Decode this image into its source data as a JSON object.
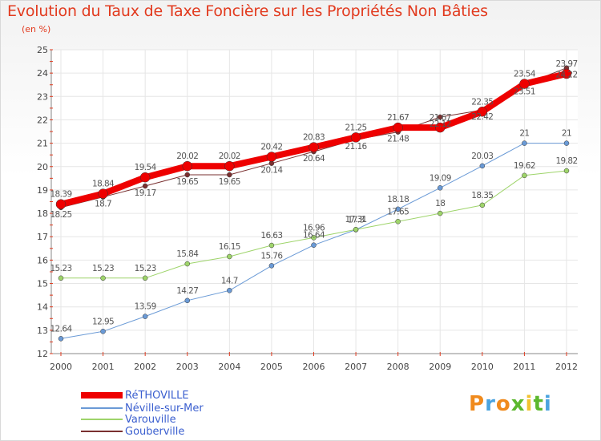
{
  "header": {
    "title": "Evolution du Taux de Taxe Foncière sur les Propriétés Non Bâties",
    "subtitle": "(en %)"
  },
  "logo": {
    "letters": [
      "P",
      "r",
      "o",
      "x",
      "i",
      "t",
      "i"
    ],
    "colors": [
      "#f08a1c",
      "#4aa3df",
      "#f08a1c",
      "#5cb82e",
      "#f2c230",
      "#5cb82e",
      "#4aa3df"
    ]
  },
  "chart_data": {
    "type": "line",
    "title": "Evolution du Taux de Taxe Foncière sur les Propriétés Non Bâties",
    "ylabel": "(en %)",
    "xlabel": "",
    "x": [
      "2000",
      "2001",
      "2002",
      "2003",
      "2004",
      "2005",
      "2006",
      "2007",
      "2008",
      "2009",
      "2010",
      "2011",
      "2012"
    ],
    "ylim": [
      12,
      25
    ],
    "yticks": [
      12,
      13,
      14,
      15,
      16,
      17,
      18,
      19,
      20,
      21,
      22,
      23,
      24,
      25
    ],
    "grid": true,
    "legend_position": "bottom-left",
    "series": [
      {
        "name": "RéTHOVILLE",
        "color": "#ee0000",
        "values": [
          18.39,
          18.84,
          19.54,
          20.02,
          20.02,
          20.42,
          20.83,
          21.25,
          21.67,
          21.67,
          22.35,
          23.54,
          23.97
        ],
        "labels": [
          "18.39",
          "18.84",
          "19.54",
          "20.02",
          "20.02",
          "20.42",
          "20.83",
          "21.25",
          "21.67",
          "21.67",
          "22.35",
          "23.54",
          "23.97"
        ]
      },
      {
        "name": "Néville-sur-Mer",
        "color": "#6a9ad6",
        "values": [
          12.64,
          12.95,
          13.59,
          14.27,
          14.7,
          15.76,
          16.64,
          17.3,
          18.18,
          19.09,
          20.03,
          21,
          21
        ],
        "labels": [
          "12.64",
          "12.95",
          "13.59",
          "14.27",
          "14.7",
          "15.76",
          "16.64",
          "17.3",
          "18.18",
          "19.09",
          "20.03",
          "21",
          "21"
        ]
      },
      {
        "name": "Varouville",
        "color": "#9ed46a",
        "values": [
          15.23,
          15.23,
          15.23,
          15.84,
          16.15,
          16.63,
          16.96,
          17.31,
          17.65,
          18,
          18.35,
          19.62,
          19.82
        ],
        "labels": [
          "15.23",
          "15.23",
          "15.23",
          "15.84",
          "16.15",
          "16.63",
          "16.96",
          "17.31",
          "17.65",
          "18",
          "18.35",
          "19.62",
          "19.82"
        ]
      },
      {
        "name": "Gouberville",
        "color": "#7a3030",
        "values": [
          18.25,
          18.7,
          19.17,
          19.65,
          19.65,
          20.14,
          20.64,
          21.16,
          21.48,
          22.12,
          22.42,
          23.51,
          24.22
        ],
        "labels": [
          "18.25",
          "18.7",
          "19.17",
          "19.65",
          "19.65",
          "20.14",
          "20.64",
          "21.16",
          "21.48",
          "22.12",
          "22.42",
          "23.51",
          "24.22"
        ]
      }
    ]
  }
}
